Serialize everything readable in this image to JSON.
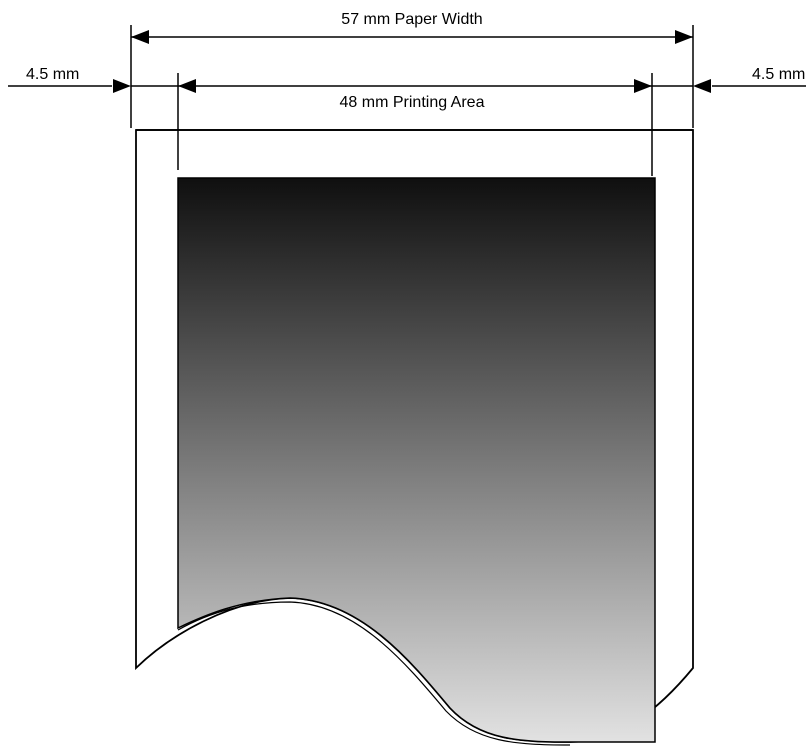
{
  "diagram": {
    "paper_width_label": "57 mm Paper Width",
    "printing_area_label": "48 mm Printing Area",
    "left_margin_label": "4.5 mm",
    "right_margin_label": "4.5 mm"
  },
  "colors": {
    "line": "#000000",
    "gradient_top": "#0f0f0f",
    "gradient_bottom": "#e2e2e2",
    "background": "#ffffff"
  }
}
